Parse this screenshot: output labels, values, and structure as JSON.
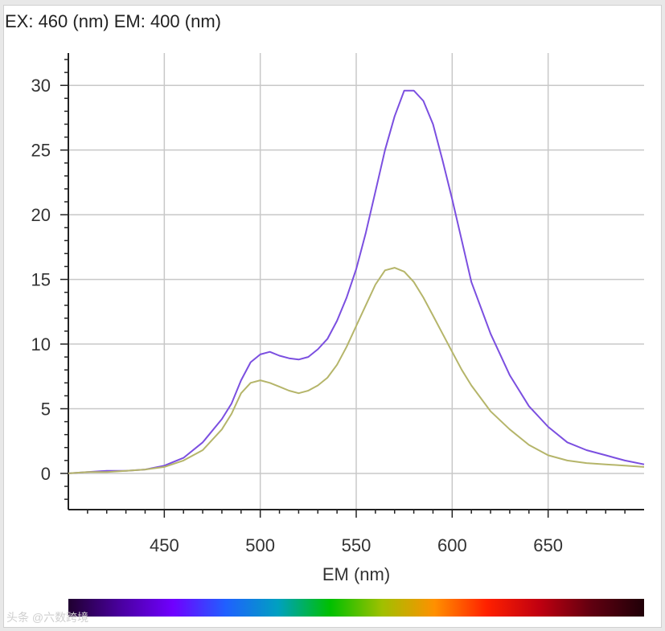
{
  "chart_data": {
    "type": "line",
    "title": "EX: 460 (nm) EM: 400 (nm)",
    "xlabel": "EM (nm)",
    "ylabel": "",
    "xlim": [
      400,
      700
    ],
    "ylim": [
      -2.8,
      32.5
    ],
    "xticks": [
      450,
      500,
      550,
      600,
      650
    ],
    "yticks": [
      0,
      5,
      10,
      15,
      20,
      25,
      30
    ],
    "grid": true,
    "legend": "none",
    "series": [
      {
        "color": "#7b4fe0",
        "x": [
          400,
          410,
          420,
          430,
          440,
          450,
          460,
          470,
          480,
          485,
          490,
          495,
          500,
          505,
          510,
          515,
          520,
          525,
          530,
          535,
          540,
          545,
          550,
          555,
          560,
          565,
          570,
          575,
          580,
          585,
          590,
          595,
          600,
          605,
          610,
          620,
          630,
          640,
          650,
          660,
          670,
          680,
          690,
          700
        ],
        "y": [
          0.0,
          0.1,
          0.2,
          0.2,
          0.3,
          0.6,
          1.2,
          2.4,
          4.2,
          5.4,
          7.2,
          8.6,
          9.2,
          9.4,
          9.1,
          8.9,
          8.8,
          9.0,
          9.6,
          10.4,
          11.8,
          13.6,
          15.8,
          18.6,
          21.8,
          25.0,
          27.6,
          29.6,
          29.6,
          28.8,
          27.0,
          24.2,
          21.2,
          18.0,
          14.8,
          10.8,
          7.6,
          5.2,
          3.6,
          2.4,
          1.8,
          1.4,
          1.0,
          0.7
        ]
      },
      {
        "color": "#b5b56a",
        "x": [
          400,
          410,
          420,
          430,
          440,
          450,
          460,
          470,
          480,
          485,
          490,
          495,
          500,
          505,
          510,
          515,
          520,
          525,
          530,
          535,
          540,
          545,
          550,
          555,
          560,
          565,
          570,
          575,
          580,
          585,
          590,
          595,
          600,
          605,
          610,
          620,
          630,
          640,
          650,
          660,
          670,
          680,
          690,
          700
        ],
        "y": [
          0.0,
          0.1,
          0.1,
          0.2,
          0.3,
          0.5,
          1.0,
          1.8,
          3.4,
          4.6,
          6.2,
          7.0,
          7.2,
          7.0,
          6.7,
          6.4,
          6.2,
          6.4,
          6.8,
          7.4,
          8.4,
          9.8,
          11.4,
          13.0,
          14.6,
          15.7,
          15.9,
          15.6,
          14.8,
          13.6,
          12.2,
          10.8,
          9.4,
          8.0,
          6.8,
          4.8,
          3.4,
          2.2,
          1.4,
          1.0,
          0.8,
          0.7,
          0.6,
          0.5
        ]
      }
    ]
  },
  "spectrum_bar": {
    "colors": [
      "#200030",
      "#4a00a0",
      "#7000ff",
      "#2060ff",
      "#00a0c0",
      "#00c000",
      "#a0c000",
      "#ff9000",
      "#ff2000",
      "#c00010",
      "#600010",
      "#200008"
    ]
  },
  "watermark": "头条 @六数跨境"
}
